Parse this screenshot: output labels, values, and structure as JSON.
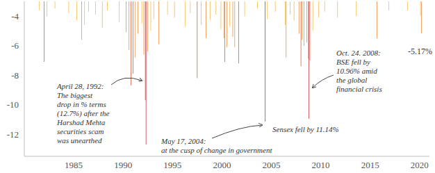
{
  "chart_data": {
    "type": "bar",
    "x": [
      1981.5,
      1982.0,
      1982.3,
      1983.1,
      1984.5,
      1985.3,
      1985.8,
      1986.1,
      1986.5,
      1987.2,
      1987.9,
      1988.4,
      1989.6,
      1990.3,
      1990.6,
      1990.8,
      1991.0,
      1991.2,
      1991.5,
      1991.9,
      1992.1,
      1992.25,
      1992.32,
      1992.5,
      1992.8,
      1993.1,
      1993.6,
      1994.5,
      1995.2,
      1996.3,
      1996.8,
      1997.5,
      1997.9,
      1998.4,
      1998.8,
      1999.4,
      1999.9,
      2000.2,
      2000.3,
      2000.5,
      2000.8,
      2001.1,
      2001.3,
      2001.7,
      2002.3,
      2003.6,
      2004.38,
      2004.6,
      2005.4,
      2006.4,
      2006.5,
      2006.9,
      2007.3,
      2007.8,
      2008.0,
      2008.1,
      2008.3,
      2008.6,
      2008.75,
      2008.81,
      2008.9,
      2009.2,
      2009.8,
      2010.4,
      2011.7,
      2013.6,
      2015.7,
      2016.9,
      2018.8,
      2020.1,
      2020.2
    ],
    "values": [
      -3.6,
      -7.1,
      -4.0,
      -3.5,
      -3.8,
      -4.3,
      -5.6,
      -4.6,
      -3.7,
      -3.9,
      -4.8,
      -3.6,
      -4.4,
      -5.1,
      -6.3,
      -8.7,
      -7.9,
      -6.8,
      -5.2,
      -4.5,
      -6.6,
      -9.7,
      -12.7,
      -6.4,
      -5.0,
      -4.2,
      -5.9,
      -3.9,
      -4.1,
      -4.7,
      -3.8,
      -8.2,
      -4.6,
      -5.5,
      -4.3,
      -3.9,
      -4.9,
      -5.5,
      -7.1,
      -6.1,
      -4.7,
      -5.4,
      -6.1,
      -7.2,
      -4.0,
      -3.5,
      -11.14,
      -4.2,
      -3.7,
      -4.6,
      -6.8,
      -3.9,
      -4.3,
      -5.2,
      -7.4,
      -5.6,
      -6.0,
      -5.8,
      -6.9,
      -10.96,
      -7.0,
      -5.0,
      -4.1,
      -3.7,
      -4.1,
      -4.0,
      -5.5,
      -3.6,
      -3.6,
      -4.0,
      -5.17
    ],
    "colors": [
      "#f5b83d",
      "#e0563a",
      "#f5b83d",
      "#f5b83d",
      "#f5b83d",
      "#f5b83d",
      "#ee8a3a",
      "#f5b83d",
      "#f5b83d",
      "#f5b83d",
      "#f5b83d",
      "#f5b83d",
      "#f5b83d",
      "#ee8a3a",
      "#ee8a3a",
      "#e0563a",
      "#e0563a",
      "#ee8a3a",
      "#ee8a3a",
      "#f5b83d",
      "#ee8a3a",
      "#cc2f36",
      "#cc2f36",
      "#ee8a3a",
      "#f5b83d",
      "#f5b83d",
      "#ee8a3a",
      "#f5b83d",
      "#f5b83d",
      "#f5b83d",
      "#f5b83d",
      "#e0563a",
      "#f5b83d",
      "#ee8a3a",
      "#f5b83d",
      "#f5b83d",
      "#f5b83d",
      "#ee8a3a",
      "#e0563a",
      "#ee8a3a",
      "#f5b83d",
      "#ee8a3a",
      "#ee8a3a",
      "#e0563a",
      "#f5b83d",
      "#f5b83d",
      "#cc2f36",
      "#f5b83d",
      "#f5b83d",
      "#f5b83d",
      "#ee8a3a",
      "#f5b83d",
      "#f5b83d",
      "#ee8a3a",
      "#e0563a",
      "#ee8a3a",
      "#ee8a3a",
      "#ee8a3a",
      "#ee8a3a",
      "#cc2f36",
      "#e0563a",
      "#f5b83d",
      "#f5b83d",
      "#f5b83d",
      "#f5b83d",
      "#f5b83d",
      "#ee8a3a",
      "#f5b83d",
      "#f5b83d",
      "#f5b83d",
      "#ee8a3a"
    ],
    "xlim": [
      1980,
      2021
    ],
    "xticks": [
      1985,
      1990,
      1995,
      2000,
      2005,
      2010,
      2015,
      2020
    ],
    "ylim": [
      -13.5,
      -3
    ],
    "yticks": [
      -12,
      -10,
      -8,
      -6,
      -4
    ],
    "grid": false,
    "annotations": [
      {
        "text": [
          "April 28, 1992:",
          "The biggest",
          "drop in % terms",
          "(12.7%) after the",
          "Harshad Mehta",
          "securities scam",
          "was unearthed"
        ]
      },
      {
        "text": [
          "May 17, 2004:",
          "at the cusp of change in government"
        ]
      },
      {
        "text": [
          "Sensex fell by 11.14%"
        ]
      },
      {
        "text": [
          "Oct. 24. 2008:",
          "BSE fell by",
          "10.96% amid",
          "the global",
          "financial crisis"
        ]
      },
      {
        "text": [
          "-5.17%"
        ]
      }
    ]
  }
}
